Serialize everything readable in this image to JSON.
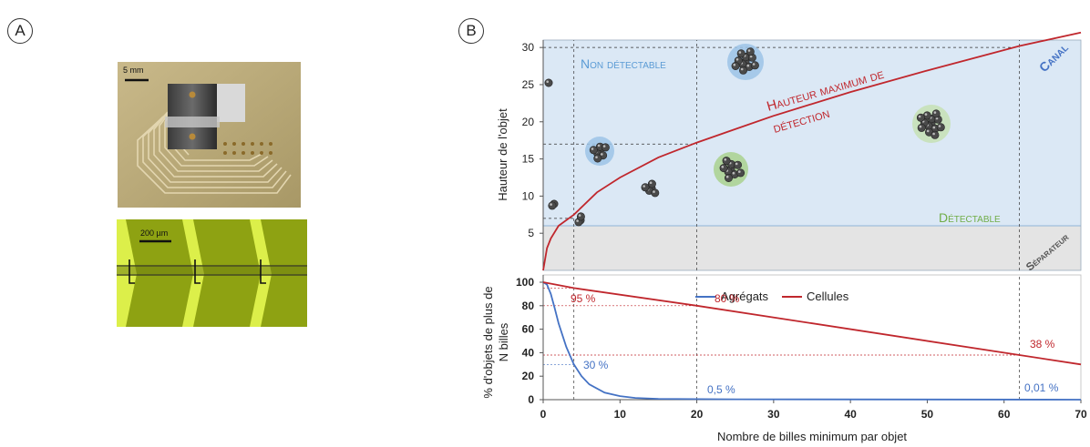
{
  "panels": {
    "a_letter": "A",
    "b_letter": "B"
  },
  "photo_top": {
    "scale_label": "5 mm"
  },
  "photo_bottom": {
    "scale_label": "200 µm"
  },
  "chart_data": [
    {
      "type": "line",
      "ylabel": "Hauteur de l'objet",
      "xlim": [
        0,
        70
      ],
      "ylim": [
        0,
        31
      ],
      "yticks": [
        5,
        10,
        15,
        20,
        25,
        30
      ],
      "grid": false,
      "series": [
        {
          "name": "Hauteur maximum de détection",
          "x": [
            0,
            0.5,
            1,
            2,
            4,
            7,
            10,
            15,
            20,
            25,
            30,
            40,
            50,
            62,
            70
          ],
          "y": [
            0,
            3.0,
            4.3,
            6.0,
            7.5,
            10.5,
            12.5,
            15.2,
            17.2,
            19.0,
            20.8,
            24.0,
            26.9,
            30.2,
            32.0
          ]
        }
      ],
      "regions": [
        {
          "label": "Canal",
          "from": 6,
          "to": 31,
          "color": "#dbe8f5"
        },
        {
          "label": "Séparateur",
          "from": 0,
          "to": 6,
          "color": "#e4e4e4"
        }
      ],
      "annotations": {
        "non_detectable": "Non détectable",
        "detectable": "Détectable",
        "curve_label_line1": "Hauteur maximum de",
        "curve_label_line2": "détection",
        "canal": "Canal",
        "separateur": "Séparateur"
      },
      "guides_x": [
        4,
        20,
        62
      ],
      "guides_y": [
        7,
        17,
        30
      ]
    },
    {
      "type": "line",
      "xlabel": "Nombre de billes minimum par objet",
      "ylabel_line1": "% d'objets de plus de",
      "ylabel_line2": "N billes",
      "xlim": [
        0,
        70
      ],
      "ylim": [
        0,
        100
      ],
      "xticks": [
        0,
        10,
        20,
        30,
        40,
        50,
        60,
        70
      ],
      "yticks": [
        0,
        20,
        40,
        60,
        80,
        100
      ],
      "legend": "top-center",
      "series": [
        {
          "name": "Agrégats",
          "color": "#4472c4",
          "x": [
            0,
            0.5,
            1,
            1.5,
            2,
            3,
            4,
            5,
            6,
            8,
            10,
            12,
            15,
            20,
            25,
            70
          ],
          "y": [
            100,
            98,
            90,
            78,
            65,
            45,
            30,
            20,
            13,
            6,
            3,
            1.5,
            0.7,
            0.5,
            0.3,
            0.01
          ]
        },
        {
          "name": "Cellules",
          "color": "#c0272d",
          "x": [
            0,
            4,
            20,
            62,
            70
          ],
          "y": [
            100,
            95,
            80,
            38,
            30
          ]
        }
      ],
      "data_labels": [
        {
          "text": "95 %",
          "series": "Cellules"
        },
        {
          "text": "80 %",
          "series": "Cellules"
        },
        {
          "text": "38 %",
          "series": "Cellules"
        },
        {
          "text": "30 %",
          "series": "Agrégats"
        },
        {
          "text": "0,5 %",
          "series": "Agrégats"
        },
        {
          "text": "0,01 %",
          "series": "Agrégats"
        }
      ]
    }
  ]
}
